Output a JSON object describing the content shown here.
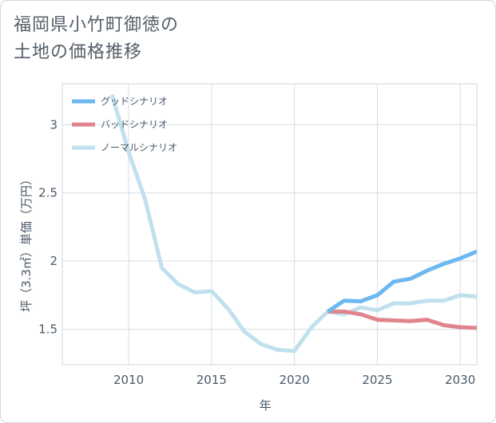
{
  "title": {
    "line1": "福岡県小竹町御徳の",
    "line2": "土地の価格推移"
  },
  "chart_data": {
    "type": "line",
    "xlabel": "年",
    "ylabel": "坪（3.3㎡）単価（万円）",
    "xlim": [
      2006,
      2031
    ],
    "ylim": [
      1.24,
      3.3
    ],
    "xticks": [
      2010,
      2015,
      2020,
      2025,
      2030
    ],
    "yticks": [
      1.5,
      2,
      2.5,
      3
    ],
    "ytick_labels": [
      "1.5",
      "2",
      "2.5",
      "3"
    ],
    "grid": true,
    "legend_position": "top-left",
    "series": [
      {
        "name": "ノーマルシナリオ",
        "color": "#c1e0ee",
        "x": [
          2009,
          2010,
          2011,
          2012,
          2013,
          2014,
          2015,
          2016,
          2017,
          2018,
          2019,
          2020,
          2021,
          2022,
          2023,
          2024,
          2025,
          2026,
          2027,
          2028,
          2029,
          2030,
          2031
        ],
        "y": [
          3.22,
          2.8,
          2.45,
          1.95,
          1.83,
          1.77,
          1.78,
          1.65,
          1.48,
          1.39,
          1.35,
          1.34,
          1.51,
          1.63,
          1.61,
          1.66,
          1.64,
          1.69,
          1.69,
          1.71,
          1.71,
          1.75,
          1.74
        ]
      },
      {
        "name": "バッドシナリオ",
        "color": "#e0848d",
        "x": [
          2022,
          2023,
          2024,
          2025,
          2026,
          2027,
          2028,
          2029,
          2030,
          2031
        ],
        "y": [
          1.63,
          1.63,
          1.61,
          1.57,
          1.565,
          1.56,
          1.57,
          1.53,
          1.515,
          1.51
        ]
      },
      {
        "name": "グッドシナリオ",
        "color": "#6cb8ef",
        "x": [
          2022,
          2023,
          2024,
          2025,
          2026,
          2027,
          2028,
          2029,
          2030,
          2031
        ],
        "y": [
          1.63,
          1.71,
          1.705,
          1.75,
          1.85,
          1.87,
          1.93,
          1.98,
          2.02,
          2.07
        ]
      }
    ],
    "legend_order": [
      "グッドシナリオ",
      "バッドシナリオ",
      "ノーマルシナリオ"
    ]
  }
}
